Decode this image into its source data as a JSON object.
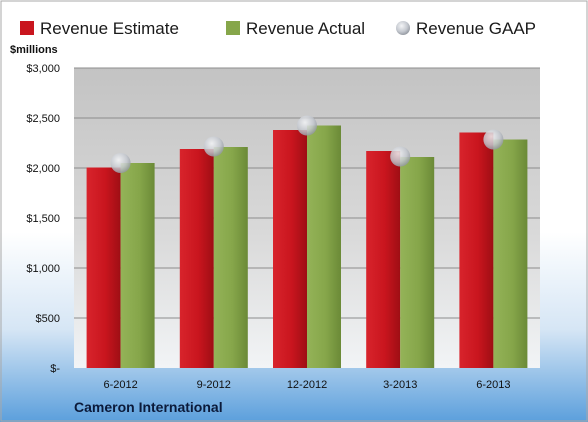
{
  "chart_data": {
    "type": "bar",
    "company": "Cameron International",
    "units_label": "$millions",
    "categories": [
      "6-2012",
      "9-2012",
      "12-2012",
      "3-2013",
      "6-2013"
    ],
    "series": [
      {
        "name": "Revenue Estimate",
        "kind": "bar",
        "color": "#c9151e",
        "values": [
          2005,
          2190,
          2380,
          2170,
          2355
        ]
      },
      {
        "name": "Revenue Actual",
        "kind": "bar",
        "color": "#86a64a",
        "values": [
          2050,
          2210,
          2425,
          2110,
          2285
        ]
      },
      {
        "name": "Revenue GAAP",
        "kind": "marker",
        "color": "#b8bcc4",
        "values": [
          2050,
          2215,
          2425,
          2115,
          2285
        ]
      }
    ],
    "y_ticks": [
      {
        "value": 0,
        "label": "$-"
      },
      {
        "value": 500,
        "label": "$500"
      },
      {
        "value": 1000,
        "label": "$1,000"
      },
      {
        "value": 1500,
        "label": "$1,500"
      },
      {
        "value": 2000,
        "label": "$2,000"
      },
      {
        "value": 2500,
        "label": "$2,500"
      },
      {
        "value": 3000,
        "label": "$3,000"
      }
    ],
    "ylim": [
      0,
      3000
    ],
    "grid": true,
    "legend_position": "top"
  }
}
